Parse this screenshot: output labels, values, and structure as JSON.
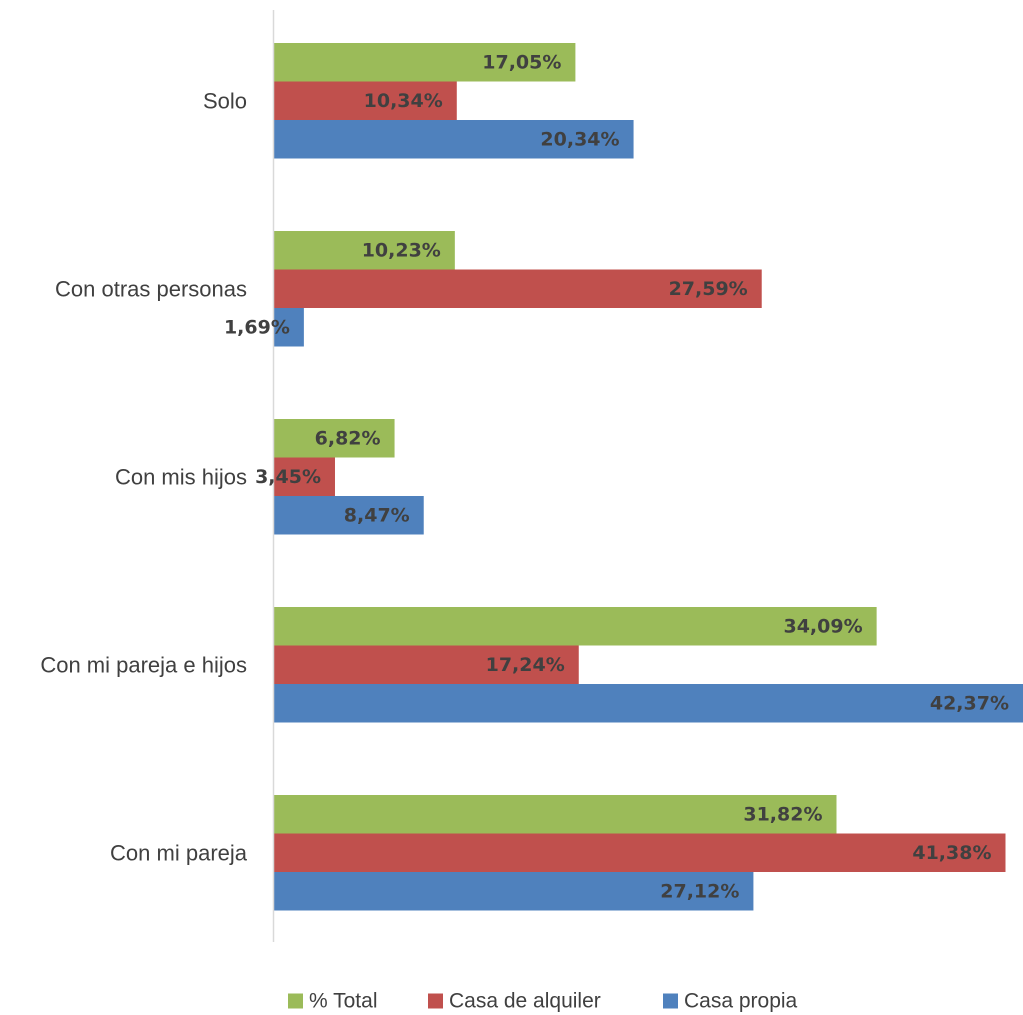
{
  "chart_data": {
    "type": "bar",
    "orientation": "horizontal",
    "categories": [
      "Solo",
      "Con otras personas",
      "Con mis hijos",
      "Con mi pareja e hijos",
      "Con mi pareja"
    ],
    "series": [
      {
        "name": "% Total",
        "color": "#9BBB59",
        "values": [
          17.05,
          10.23,
          6.82,
          34.09,
          31.82
        ],
        "labels": [
          "17,05%",
          "10,23%",
          "6,82%",
          "34,09%",
          "31,82%"
        ]
      },
      {
        "name": "Casa de alquiler",
        "color": "#C0504D",
        "values": [
          10.34,
          27.59,
          3.45,
          17.24,
          41.38
        ],
        "labels": [
          "10,34%",
          "27,59%",
          "3,45%",
          "17,24%",
          "41,38%"
        ]
      },
      {
        "name": "Casa propia",
        "color": "#4F81BD",
        "values": [
          20.34,
          1.69,
          8.47,
          42.37,
          27.12
        ],
        "labels": [
          "20,34%",
          "1,69%",
          "8,47%",
          "42,37%",
          "27,12%"
        ]
      }
    ],
    "xlim": [
      0,
      42.37
    ],
    "grid": false,
    "legend_position": "bottom",
    "title": "",
    "xlabel": "",
    "ylabel": ""
  }
}
